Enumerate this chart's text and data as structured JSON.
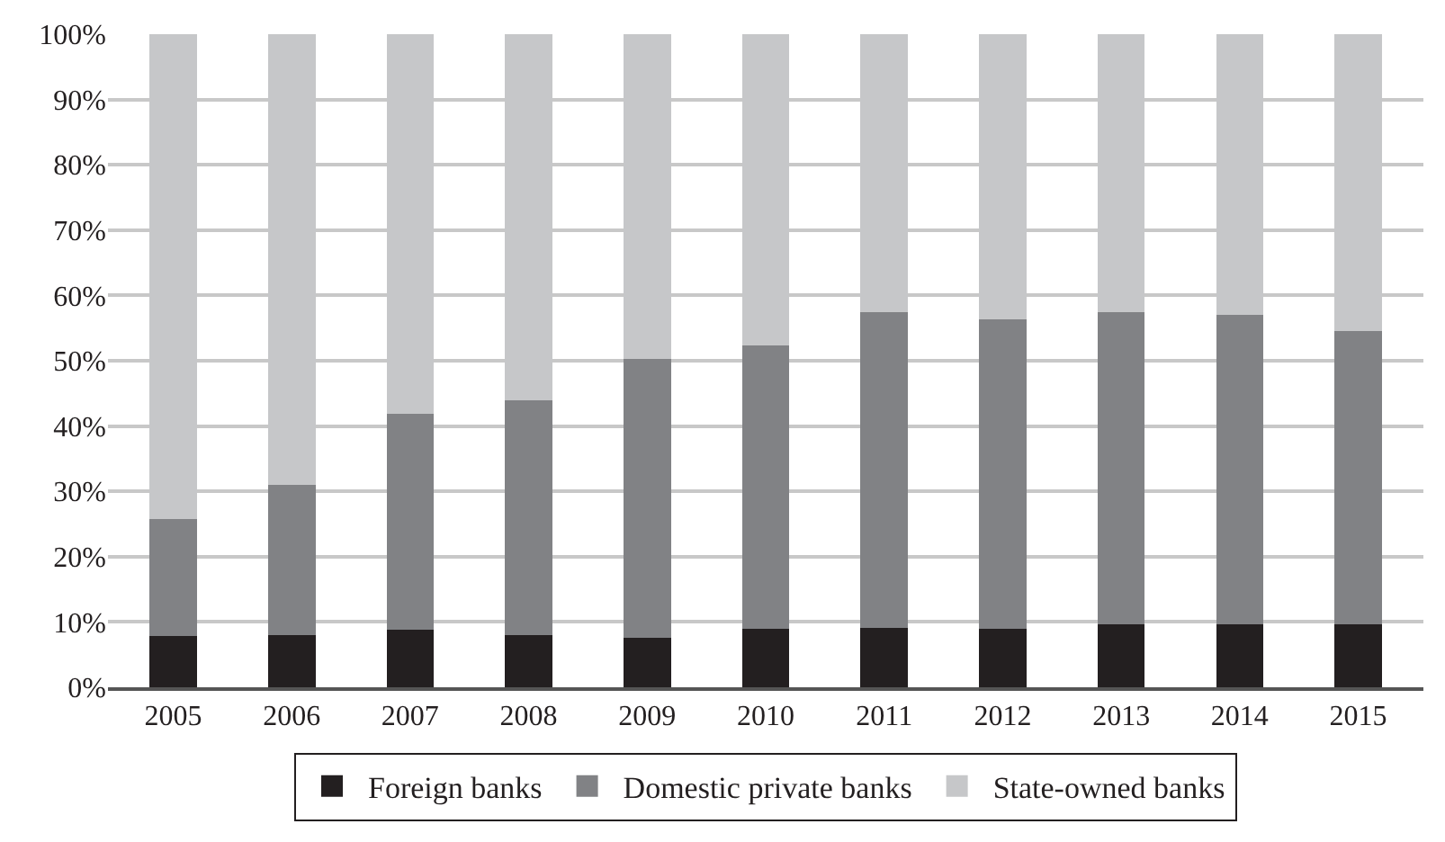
{
  "chart_data": {
    "type": "bar",
    "stacked": true,
    "categories": [
      "2005",
      "2006",
      "2007",
      "2008",
      "2009",
      "2010",
      "2011",
      "2012",
      "2013",
      "2014",
      "2015"
    ],
    "series": [
      {
        "name": "Foreign banks",
        "color": "#231f20",
        "values": [
          7.8,
          8.0,
          8.8,
          8.0,
          7.6,
          8.9,
          9.1,
          9.0,
          9.7,
          9.7,
          9.7
        ]
      },
      {
        "name": "Domestic private banks",
        "color": "#818285",
        "values": [
          17.9,
          23.0,
          33.1,
          36.0,
          42.7,
          43.4,
          48.4,
          47.4,
          47.8,
          47.3,
          44.8
        ]
      },
      {
        "name": "State-owned banks",
        "color": "#c6c7c9",
        "values": [
          74.3,
          69.0,
          58.1,
          56.0,
          49.7,
          47.7,
          42.5,
          43.6,
          42.5,
          43.0,
          45.5
        ]
      }
    ],
    "ylim": [
      0,
      100
    ],
    "yticks": [
      {
        "value": 0,
        "label": "0%"
      },
      {
        "value": 10,
        "label": "10%"
      },
      {
        "value": 20,
        "label": "20%"
      },
      {
        "value": 30,
        "label": "30%"
      },
      {
        "value": 40,
        "label": "40%"
      },
      {
        "value": 50,
        "label": "50%"
      },
      {
        "value": 60,
        "label": "60%"
      },
      {
        "value": 70,
        "label": "70%"
      },
      {
        "value": 80,
        "label": "80%"
      },
      {
        "value": 90,
        "label": "90%"
      },
      {
        "value": 100,
        "label": "100%"
      }
    ],
    "grid": "y",
    "legend": "bottom"
  }
}
